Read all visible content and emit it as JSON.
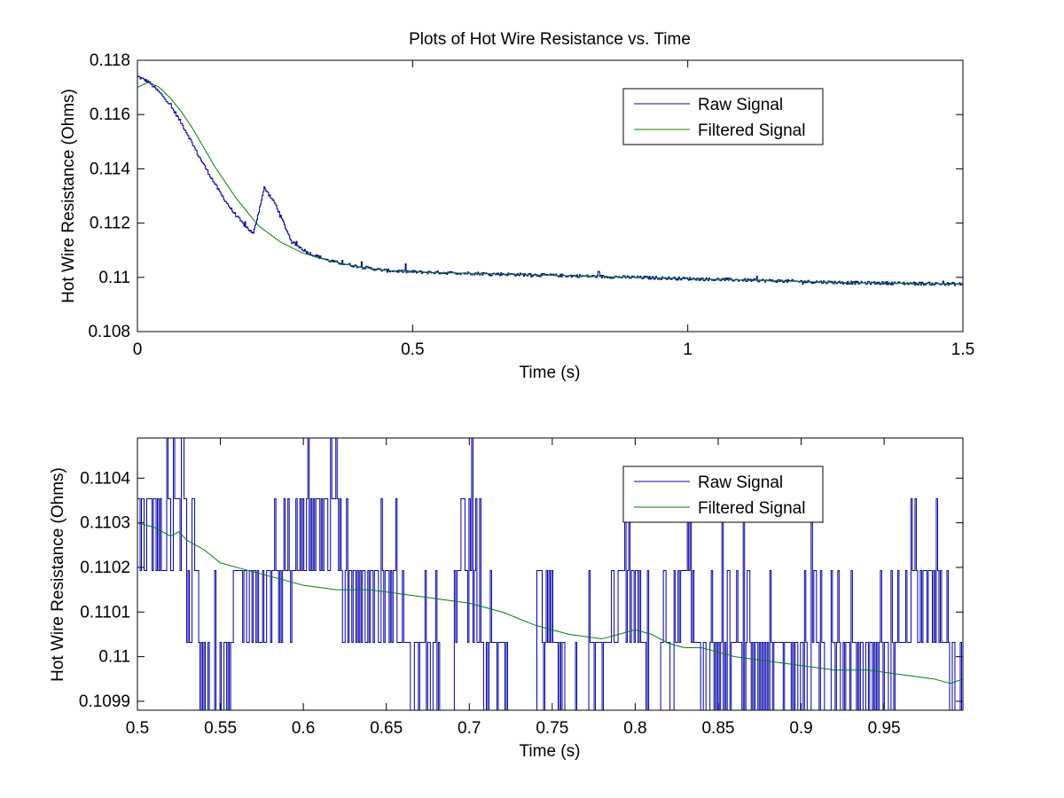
{
  "figure": {
    "background": "#ffffff"
  },
  "chart_data": [
    {
      "type": "line",
      "title": "Plots of Hot Wire Resistance vs. Time",
      "xlabel": "Time (s)",
      "ylabel": "Hot Wire Resistance (Ohms)",
      "xlim": [
        0,
        1.5
      ],
      "ylim": [
        0.108,
        0.118
      ],
      "xticks": [
        0,
        0.5,
        1,
        1.5
      ],
      "xtick_labels": [
        "0",
        "0.5",
        "1",
        "1.5"
      ],
      "yticks": [
        0.108,
        0.11,
        0.112,
        0.114,
        0.116,
        0.118
      ],
      "ytick_labels": [
        "0.108",
        "0.11",
        "0.112",
        "0.114",
        "0.116",
        "0.118"
      ],
      "grid": false,
      "legend": {
        "placement": "upper-right",
        "entries": [
          "Raw Signal",
          "Filtered Signal"
        ]
      },
      "series": [
        {
          "name": "Raw Signal",
          "color": "#0000aa",
          "style": "noisy-step",
          "x": [
            0,
            0.01,
            0.02,
            0.03,
            0.05,
            0.07,
            0.09,
            0.11,
            0.13,
            0.15,
            0.17,
            0.19,
            0.21,
            0.23,
            0.25,
            0.28,
            0.31,
            0.35,
            0.4,
            0.45,
            0.5,
            0.6,
            0.7,
            0.8,
            0.9,
            1.0,
            1.1,
            1.2,
            1.3,
            1.4,
            1.5
          ],
          "values": [
            0.1174,
            0.1173,
            0.1172,
            0.117,
            0.1166,
            0.116,
            0.1153,
            0.1145,
            0.1138,
            0.1131,
            0.1125,
            0.112,
            0.1116,
            0.1133,
            0.1127,
            0.1113,
            0.1109,
            0.1106,
            0.1104,
            0.11025,
            0.1102,
            0.11015,
            0.1101,
            0.11005,
            0.11,
            0.10995,
            0.1099,
            0.10985,
            0.1098,
            0.10978,
            0.10975
          ]
        },
        {
          "name": "Filtered Signal",
          "color": "#008000",
          "style": "smooth",
          "x": [
            0,
            0.02,
            0.04,
            0.06,
            0.08,
            0.1,
            0.12,
            0.14,
            0.16,
            0.18,
            0.2,
            0.22,
            0.24,
            0.26,
            0.28,
            0.3,
            0.35,
            0.4,
            0.45,
            0.5,
            0.6,
            0.7,
            0.8,
            0.9,
            1.0,
            1.1,
            1.2,
            1.3,
            1.4,
            1.5
          ],
          "values": [
            0.117,
            0.1172,
            0.117,
            0.1166,
            0.1161,
            0.1155,
            0.1148,
            0.1141,
            0.1135,
            0.1129,
            0.1124,
            0.1119,
            0.1116,
            0.1113,
            0.1111,
            0.1109,
            0.1106,
            0.1104,
            0.11025,
            0.1102,
            0.11015,
            0.1101,
            0.11005,
            0.11,
            0.10995,
            0.1099,
            0.10985,
            0.1098,
            0.10978,
            0.10975
          ]
        }
      ]
    },
    {
      "type": "line",
      "title": "",
      "xlabel": "Time (s)",
      "ylabel": "Hot Wire Resistance (Ohms)",
      "xlim": [
        0.5,
        0.9975
      ],
      "ylim": [
        0.10988,
        0.11049
      ],
      "xticks": [
        0.5,
        0.55,
        0.6,
        0.65,
        0.7,
        0.75,
        0.8,
        0.85,
        0.9,
        0.95
      ],
      "xtick_labels": [
        "0.5",
        "0.55",
        "0.6",
        "0.65",
        "0.7",
        "0.75",
        "0.8",
        "0.85",
        "0.9",
        "0.95"
      ],
      "yticks": [
        0.1099,
        0.11,
        0.1101,
        0.1102,
        0.1103,
        0.1104
      ],
      "ytick_labels": [
        "0.1099",
        "0.11",
        "0.1101",
        "0.1102",
        "0.1103",
        "0.1104"
      ],
      "grid": false,
      "legend": {
        "placement": "upper-right",
        "entries": [
          "Raw Signal",
          "Filtered Signal"
        ]
      },
      "series": [
        {
          "name": "Raw Signal",
          "color": "#0000aa",
          "style": "quantized-step",
          "quant_levels": [
            0.109871,
            0.110032,
            0.110193,
            0.110354,
            0.110515
          ],
          "x": [
            0.5,
            0.525,
            0.527,
            0.53,
            0.545,
            0.57,
            0.62,
            0.625,
            0.65,
            0.69,
            0.695,
            0.7,
            0.73,
            0.75,
            0.76,
            0.78,
            0.79,
            0.8,
            0.81,
            0.83,
            0.84,
            0.9,
            0.95,
            0.98,
            0.9975
          ],
          "values": [
            0.110354,
            0.110354,
            0.110515,
            0.110193,
            0.110032,
            0.110193,
            0.110354,
            0.110193,
            0.110193,
            0.109871,
            0.110354,
            0.110193,
            0.109871,
            0.110032,
            0.109871,
            0.110032,
            0.110193,
            0.110193,
            0.109871,
            0.110193,
            0.110032,
            0.110032,
            0.110032,
            0.110193,
            0.110032
          ]
        },
        {
          "name": "Filtered Signal",
          "color": "#008000",
          "style": "smooth",
          "x": [
            0.5,
            0.51,
            0.52,
            0.525,
            0.53,
            0.54,
            0.55,
            0.56,
            0.57,
            0.58,
            0.6,
            0.62,
            0.64,
            0.66,
            0.68,
            0.7,
            0.72,
            0.74,
            0.76,
            0.78,
            0.8,
            0.81,
            0.82,
            0.83,
            0.84,
            0.86,
            0.88,
            0.9,
            0.92,
            0.94,
            0.96,
            0.98,
            0.99,
            0.9975
          ],
          "values": [
            0.1103,
            0.11029,
            0.11027,
            0.11028,
            0.11026,
            0.11024,
            0.11021,
            0.1102,
            0.11019,
            0.11018,
            0.11016,
            0.11015,
            0.11015,
            0.11014,
            0.11013,
            0.11012,
            0.1101,
            0.11007,
            0.11005,
            0.11004,
            0.11006,
            0.11005,
            0.11003,
            0.11002,
            0.11002,
            0.11,
            0.10999,
            0.10998,
            0.10997,
            0.10997,
            0.10996,
            0.10995,
            0.10994,
            0.10995
          ]
        }
      ]
    }
  ]
}
